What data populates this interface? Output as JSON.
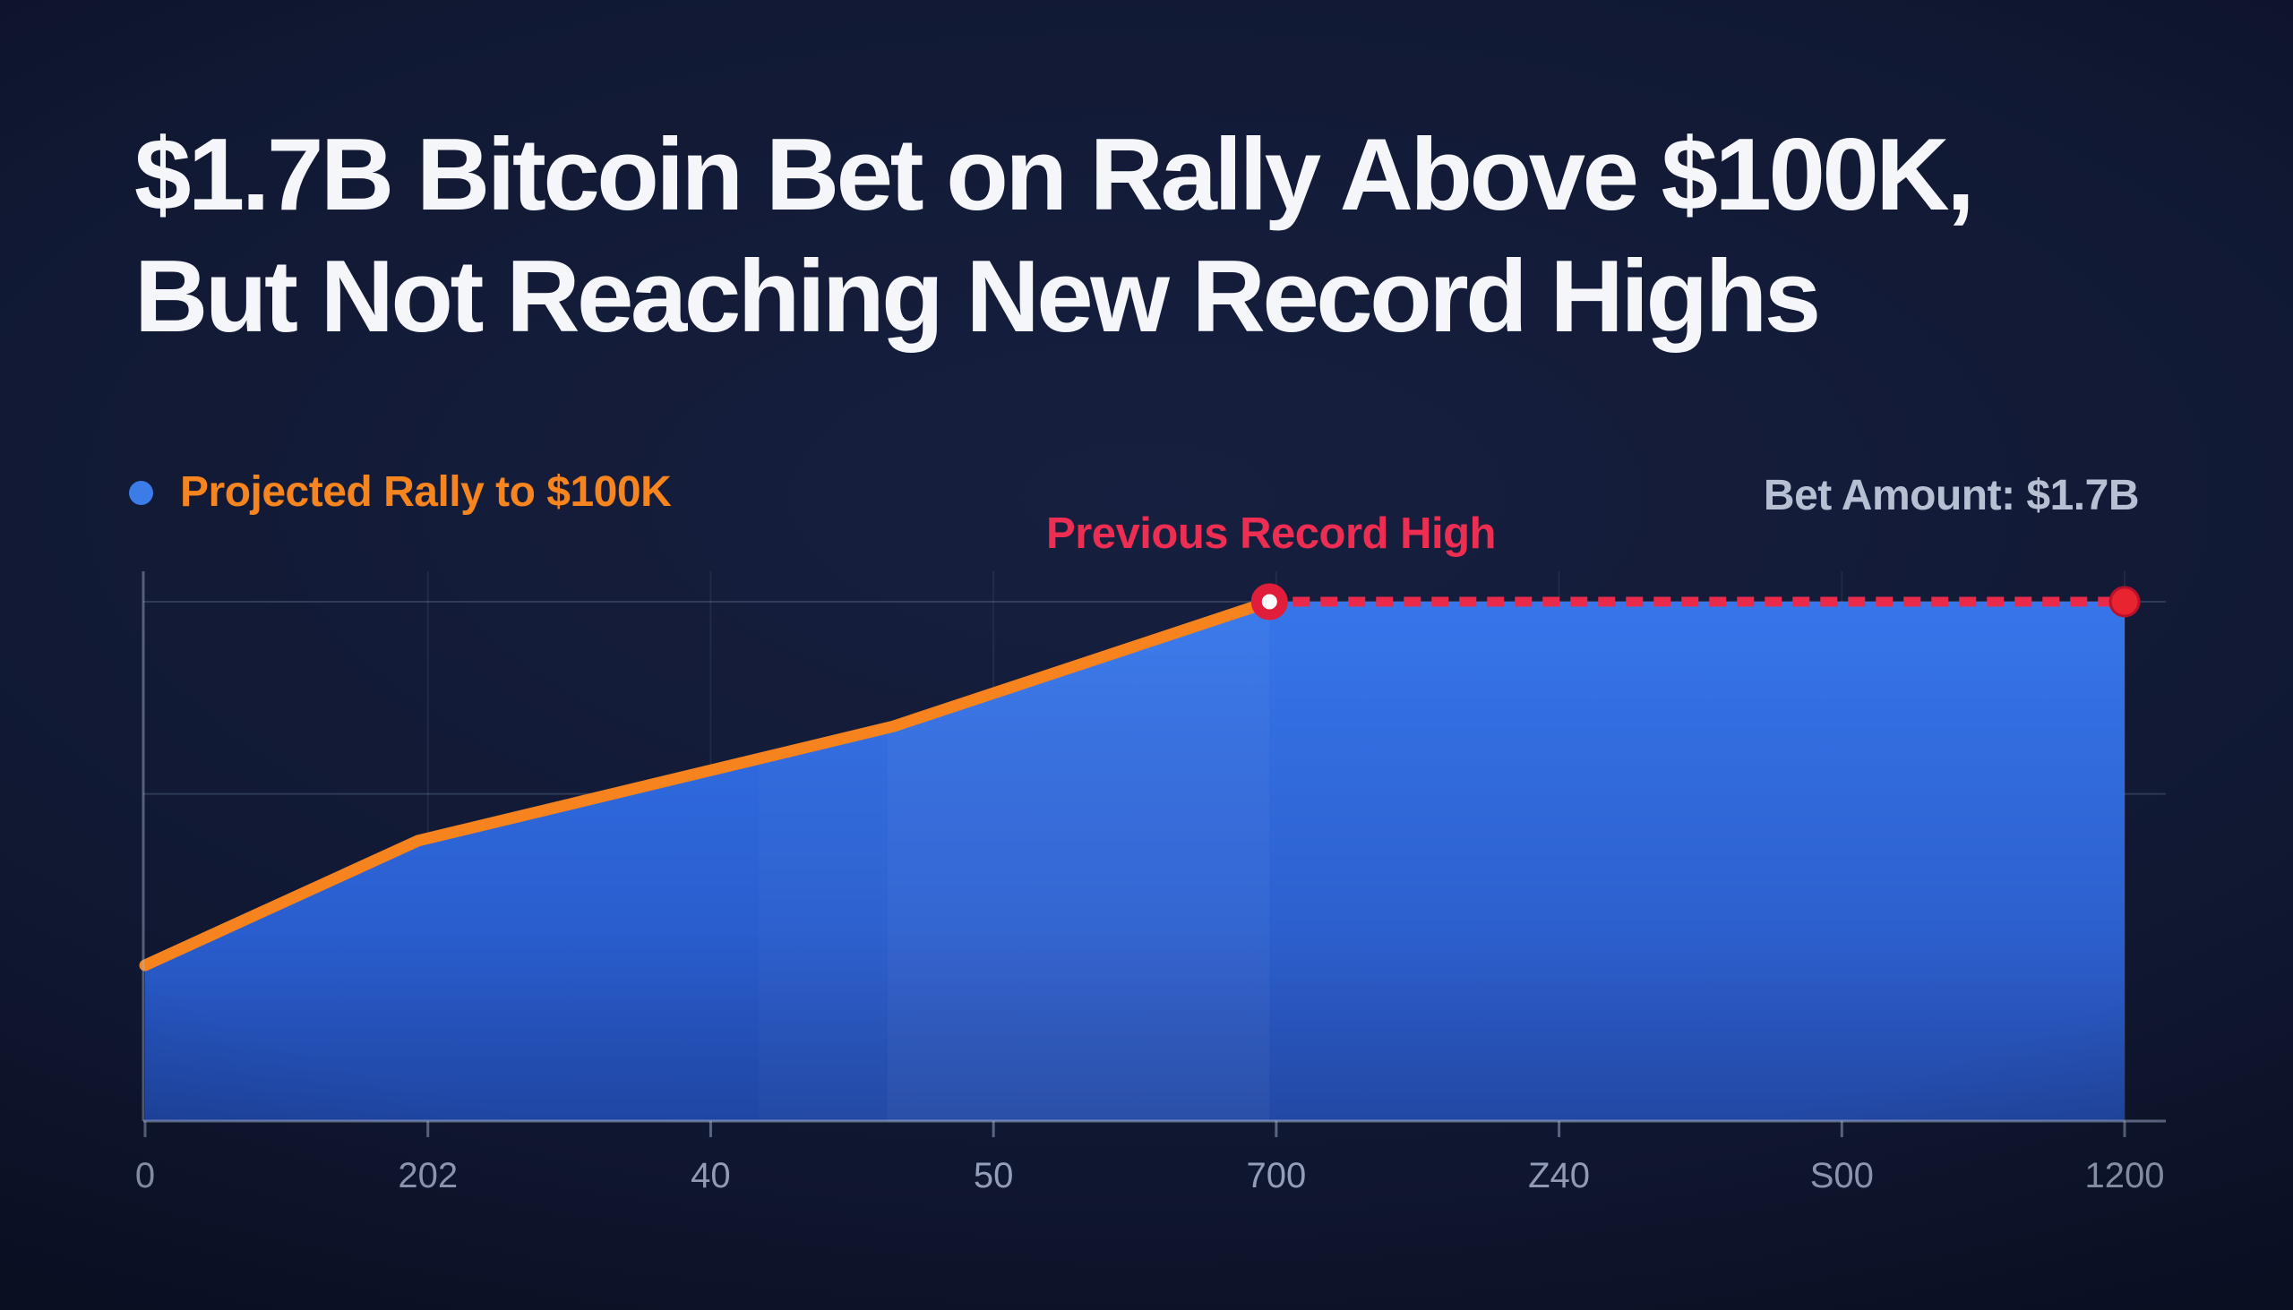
{
  "page": {
    "background": "#101834",
    "vignette_edge": "#080d1e",
    "title_lines": [
      "$1.7B Bitcoin Bet on Rally Above $100K,",
      "But Not Reaching New Record Highs"
    ],
    "title_color": "#f4f6fa"
  },
  "legend": {
    "dot_color": "#3b7ce8",
    "projected_label": "Projected Rally to $100K",
    "projected_color": "#f6841f",
    "bet_amount_label": "Bet Amount: $1.7B",
    "bet_amount_color": "#b7c0d3"
  },
  "annotations": {
    "record_high_label": "Previous Record High",
    "record_high_color": "#ee2d52"
  },
  "chart_data": {
    "type": "area",
    "title": "",
    "xlabel": "",
    "ylabel": "",
    "x_tick_labels": [
      "0",
      "202",
      "40",
      "50",
      "700",
      "Z40",
      "S00",
      "1200"
    ],
    "value_axis": {
      "min": 0,
      "record_high": 100,
      "tick_labels_visible": false,
      "ylim": [
        0,
        112
      ]
    },
    "series": [
      {
        "name": "Projected Rally to $100K",
        "type": "line",
        "color": "#f6831d",
        "line_width": 13,
        "x_frac": [
          0,
          0.138,
          0.378,
          0.568
        ],
        "values": [
          30,
          54,
          76,
          100
        ],
        "area_fill": {
          "top": "#3374ea",
          "mid": "#2a5ecf",
          "bottom": "#1f46a3",
          "extends_flat_to_x_frac": 1.0
        }
      },
      {
        "name": "Previous Record High",
        "type": "line",
        "style": "dashed",
        "color": "#ea2a4b",
        "line_width": 11,
        "dash": [
          19,
          12
        ],
        "x_frac": [
          0.568,
          1.0
        ],
        "values": [
          100,
          100
        ]
      }
    ],
    "markers": [
      {
        "x_frac": 0.568,
        "value": 100,
        "style": "ring",
        "ring_color": "#e01e3c",
        "core_color": "#ffffff"
      },
      {
        "x_frac": 1.0,
        "value": 100,
        "style": "solid",
        "color": "#e72430",
        "edge_color": "#b8122a"
      }
    ],
    "grid": {
      "h_gridline_values": [
        100,
        63
      ],
      "v_gridlines_at_ticks": true,
      "grid_color": "#9db0d0"
    },
    "shade_bands": [
      {
        "x0_frac": 0.31,
        "x1_frac": 0.375,
        "alpha": 0.02
      },
      {
        "x0_frac": 0.375,
        "x1_frac": 0.568,
        "alpha": 0.05
      },
      {
        "x0_frac": 0.568,
        "x1_frac": 1.0,
        "alpha": 0.015
      }
    ],
    "axis_color": "#aab4cf",
    "tick_label_color": "#949eb8",
    "legend_position": "top-left"
  }
}
